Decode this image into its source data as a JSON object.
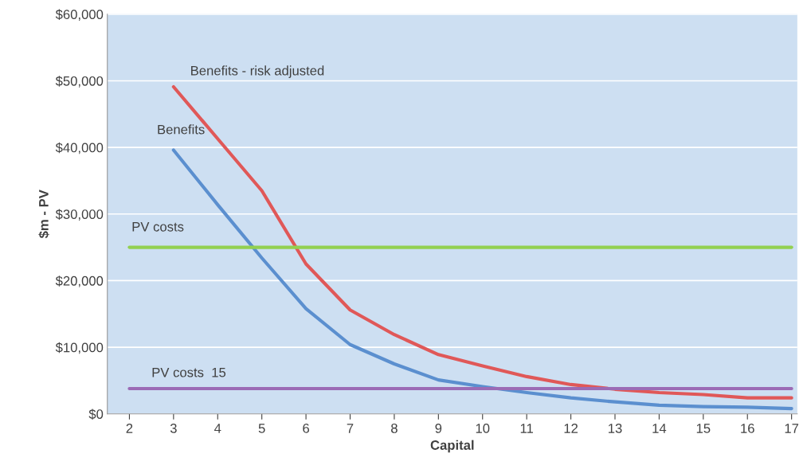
{
  "chart_data": {
    "type": "line",
    "xlabel": "Capital",
    "ylabel": "$m - PV",
    "x": [
      2,
      3,
      4,
      5,
      6,
      7,
      8,
      9,
      10,
      11,
      12,
      13,
      14,
      15,
      16,
      17
    ],
    "series": [
      {
        "name": "Benefits - risk adjusted",
        "color": "#e05858",
        "values": [
          null,
          49100,
          41300,
          33500,
          22500,
          15600,
          11900,
          8900,
          7200,
          5600,
          4400,
          3700,
          3200,
          2900,
          2400,
          2400
        ]
      },
      {
        "name": "Benefits",
        "color": "#5b8fcf",
        "values": [
          null,
          39600,
          31400,
          23400,
          15800,
          10400,
          7500,
          5100,
          4100,
          3200,
          2400,
          1800,
          1300,
          1100,
          1000,
          800
        ]
      },
      {
        "name": "PV costs",
        "color": "#92d050",
        "values": [
          25000,
          25000,
          25000,
          25000,
          25000,
          25000,
          25000,
          25000,
          25000,
          25000,
          25000,
          25000,
          25000,
          25000,
          25000,
          25000
        ]
      },
      {
        "name": "PV costs  15",
        "color": "#9b6bb5",
        "values": [
          3800,
          3800,
          3800,
          3800,
          3800,
          3800,
          3800,
          3800,
          3800,
          3800,
          3800,
          3800,
          3800,
          3800,
          3800,
          3800
        ]
      }
    ],
    "xlim": [
      1.5,
      17.13
    ],
    "xticks": [
      2,
      3,
      4,
      5,
      6,
      7,
      8,
      9,
      10,
      11,
      12,
      13,
      14,
      15,
      16,
      17
    ],
    "ylim": [
      0,
      60000
    ],
    "yticks": [
      {
        "value": 0,
        "label": "$0"
      },
      {
        "value": 10000,
        "label": "$10,000"
      },
      {
        "value": 20000,
        "label": "$20,000"
      },
      {
        "value": 30000,
        "label": "$30,000"
      },
      {
        "value": 40000,
        "label": "$40,000"
      },
      {
        "value": 50000,
        "label": "$50,000"
      },
      {
        "value": 60000,
        "label": "$60,000"
      }
    ],
    "grid": "y",
    "legend": false,
    "marker": "none",
    "line_style": "solid"
  }
}
